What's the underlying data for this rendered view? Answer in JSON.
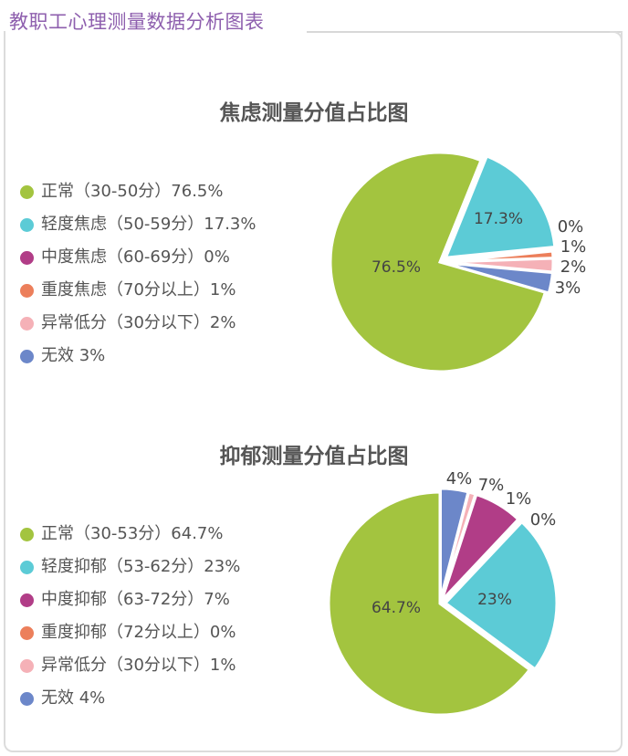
{
  "page_title": "教职工心理测量数据分析图表",
  "chart_data": [
    {
      "type": "pie",
      "title": "焦虑测量分值占比图",
      "series": [
        {
          "label": "正常（30-50分）76.5%",
          "name": "正常（30-50分）",
          "value": 76.5,
          "slice_label": "76.5%",
          "color": "#a3c43f"
        },
        {
          "label": "轻度焦虑（50-59分）17.3%",
          "name": "轻度焦虑（50-59分）",
          "value": 17.3,
          "slice_label": "17.3%",
          "color": "#5ccbd6"
        },
        {
          "label": "中度焦虑（60-69分）0%",
          "name": "中度焦虑（60-69分）",
          "value": 0,
          "slice_label": "0%",
          "color": "#b13d87"
        },
        {
          "label": "重度焦虑（70分以上）1%",
          "name": "重度焦虑（70分以上）",
          "value": 1,
          "slice_label": "1%",
          "color": "#ec7f5b"
        },
        {
          "label": "异常低分（30分以下）2%",
          "name": "异常低分（30分以下）",
          "value": 2,
          "slice_label": "2%",
          "color": "#f5b1b7"
        },
        {
          "label": "无效 3%",
          "name": "无效",
          "value": 3,
          "slice_label": "3%",
          "color": "#6c87c9"
        }
      ]
    },
    {
      "type": "pie",
      "title": "抑郁测量分值占比图",
      "series": [
        {
          "label": "正常（30-53分）64.7%",
          "name": "正常（30-53分）",
          "value": 64.7,
          "slice_label": "64.7%",
          "color": "#a3c43f"
        },
        {
          "label": "轻度抑郁（53-62分）23%",
          "name": "轻度抑郁（53-62分）",
          "value": 23,
          "slice_label": "23%",
          "color": "#5ccbd6"
        },
        {
          "label": "中度抑郁（63-72分）7%",
          "name": "中度抑郁（63-72分）",
          "value": 7,
          "slice_label": "7%",
          "color": "#b13d87"
        },
        {
          "label": "重度抑郁（72分以上）0%",
          "name": "重度抑郁（72分以上）",
          "value": 0,
          "slice_label": "0%",
          "color": "#ec7f5b"
        },
        {
          "label": "异常低分（30分以下）1%",
          "name": "异常低分（30分以下）",
          "value": 1,
          "slice_label": "1%",
          "color": "#f5b1b7"
        },
        {
          "label": "无效 4%",
          "name": "无效",
          "value": 4,
          "slice_label": "4%",
          "color": "#6c87c9"
        }
      ]
    }
  ]
}
